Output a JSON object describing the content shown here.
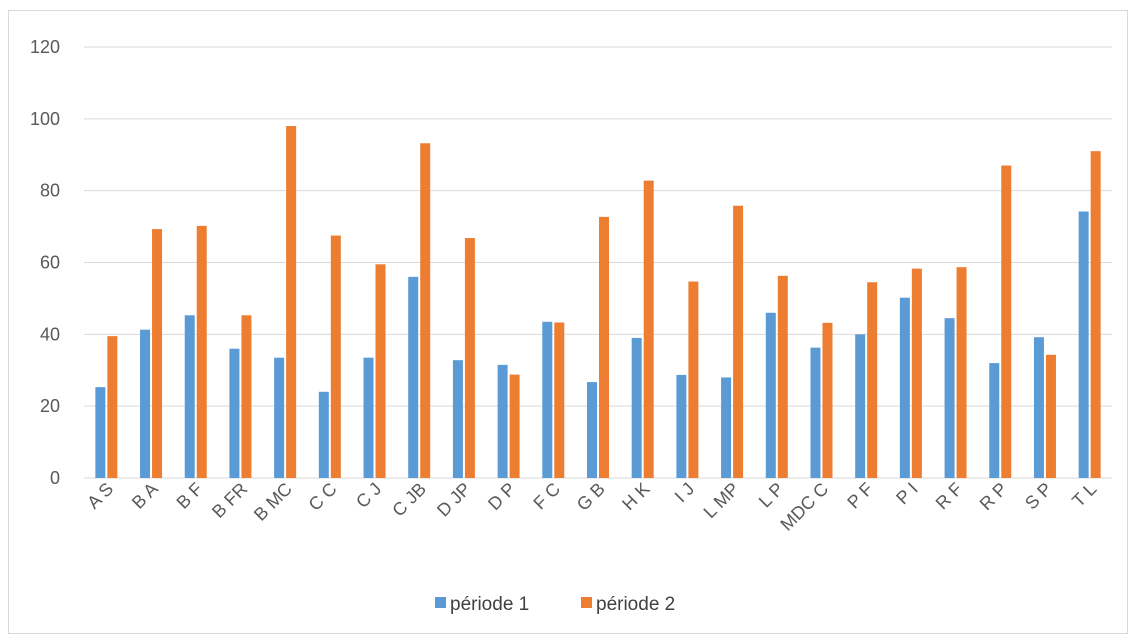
{
  "chart_data": {
    "type": "bar",
    "title": "",
    "xlabel": "",
    "ylabel": "",
    "ylim": [
      0,
      120
    ],
    "yticks": [
      0,
      20,
      40,
      60,
      80,
      100,
      120
    ],
    "grid": true,
    "legend_position": "bottom",
    "categories": [
      "A S",
      "B A",
      "B F",
      "B FR",
      "B MC",
      "C C",
      "C J",
      "C JB",
      "D JP",
      "D P",
      "F C",
      "G B",
      "H K",
      "I J",
      "L MP",
      "L P",
      "MDC C",
      "P F",
      "P I",
      "R F",
      "R P",
      "S P",
      "T L"
    ],
    "series": [
      {
        "name": "période 1",
        "color": "#5B9BD5",
        "values": [
          25.3,
          41.3,
          45.3,
          36.0,
          33.5,
          24.0,
          33.5,
          56.0,
          32.8,
          31.5,
          43.5,
          26.7,
          39.0,
          28.7,
          28.0,
          46.0,
          36.3,
          40.0,
          50.2,
          44.5,
          32.0,
          39.2,
          74.2
        ]
      },
      {
        "name": "période 2",
        "color": "#ED7D31",
        "values": [
          39.5,
          69.3,
          70.2,
          45.3,
          98.0,
          67.5,
          59.5,
          93.2,
          66.8,
          28.8,
          43.3,
          72.7,
          82.8,
          54.7,
          75.8,
          56.3,
          43.2,
          54.5,
          58.3,
          58.7,
          87.0,
          34.3,
          91.0
        ]
      }
    ]
  }
}
